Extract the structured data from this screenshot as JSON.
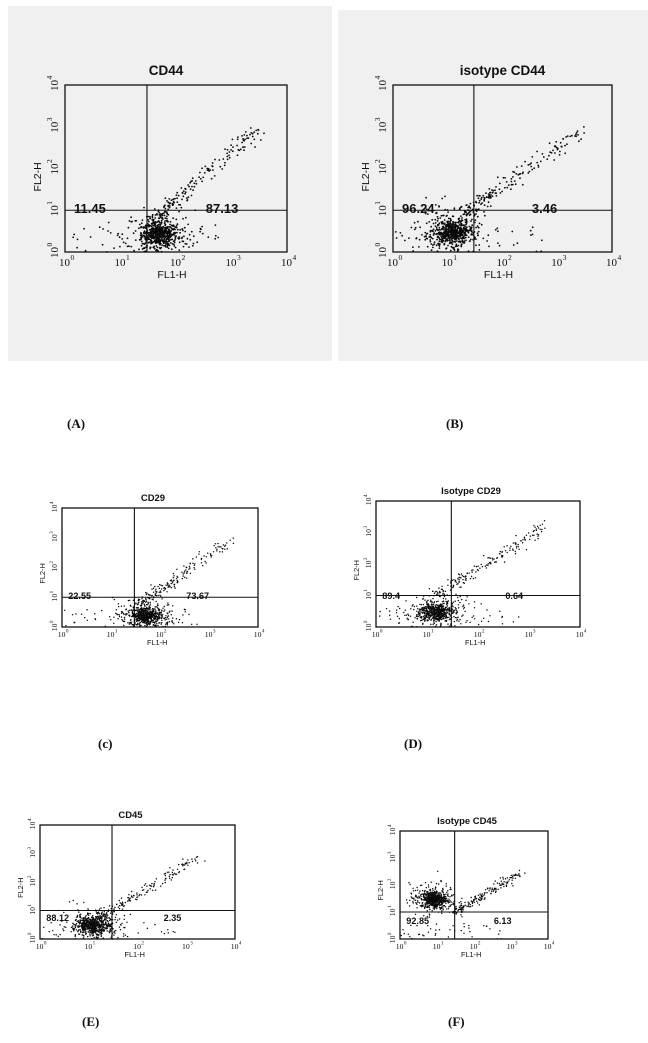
{
  "chart_data": [
    {
      "panel": "(A)",
      "type": "scatter",
      "title": "CD44",
      "xlabel": "FL1-H",
      "ylabel": "FL2-H",
      "xscale": "log",
      "yscale": "log",
      "xlim": [
        1,
        10000
      ],
      "ylim": [
        1,
        10000
      ],
      "xticks": [
        "10",
        "10",
        "10",
        "10",
        "10"
      ],
      "tick_exponents": [
        "0",
        "1",
        "2",
        "3",
        "4"
      ],
      "gate": {
        "x": 30,
        "y": 10
      },
      "quadrant_labels": [
        "11.45",
        "87.13"
      ],
      "cluster": {
        "x": 50,
        "y": 2.6
      },
      "tail": {
        "x": [
          40,
          3000
        ],
        "y": [
          6,
          900
        ]
      }
    },
    {
      "panel": "(B)",
      "type": "scatter",
      "title": "isotype CD44",
      "xlabel": "FL1-H",
      "ylabel": "FL2-H",
      "xscale": "log",
      "yscale": "log",
      "xlim": [
        1,
        10000
      ],
      "ylim": [
        1,
        10000
      ],
      "xticks": [
        "10",
        "10",
        "10",
        "10",
        "10"
      ],
      "tick_exponents": [
        "0",
        "1",
        "2",
        "3",
        "4"
      ],
      "gate": {
        "x": 30,
        "y": 10
      },
      "quadrant_labels": [
        "96.24",
        "3.46"
      ],
      "cluster": {
        "x": 12,
        "y": 3
      },
      "tail": {
        "x": [
          20,
          3000
        ],
        "y": [
          8,
          900
        ]
      }
    },
    {
      "panel": "(c)",
      "type": "scatter",
      "title": "CD29",
      "xlabel": "FL1-H",
      "ylabel": "FL2-H",
      "xscale": "log",
      "yscale": "log",
      "xlim": [
        1,
        10000
      ],
      "ylim": [
        1,
        10000
      ],
      "xticks": [
        "10",
        "10",
        "10",
        "10",
        "10"
      ],
      "tick_exponents": [
        "0",
        "1",
        "2",
        "3",
        "4"
      ],
      "gate": {
        "x": 30,
        "y": 10
      },
      "quadrant_labels": [
        "22.55",
        "73.67"
      ],
      "cluster": {
        "x": 50,
        "y": 2.4
      },
      "tail": {
        "x": [
          40,
          3000
        ],
        "y": [
          6,
          900
        ]
      }
    },
    {
      "panel": "(D)",
      "type": "scatter",
      "title": "Isotype CD29",
      "xlabel": "FL1-H",
      "ylabel": "FL2-H",
      "xscale": "log",
      "yscale": "log",
      "xlim": [
        1,
        10000
      ],
      "ylim": [
        1,
        10000
      ],
      "xticks": [
        "10",
        "10",
        "10",
        "10",
        "10"
      ],
      "tick_exponents": [
        "0",
        "1",
        "2",
        "3",
        "4"
      ],
      "gate": {
        "x": 30,
        "y": 10
      },
      "quadrant_labels": [
        "89.4",
        "0.64"
      ],
      "cluster": {
        "x": 15,
        "y": 3
      },
      "tail": {
        "x": [
          15,
          2000
        ],
        "y": [
          10,
          1500
        ]
      }
    },
    {
      "panel": "(E)",
      "type": "scatter",
      "title": "CD45",
      "xlabel": "FL1-H",
      "ylabel": "FL2-H",
      "xscale": "log",
      "yscale": "log",
      "xlim": [
        1,
        10000
      ],
      "ylim": [
        1,
        10000
      ],
      "xticks": [
        "10",
        "10",
        "10",
        "10",
        "10"
      ],
      "tick_exponents": [
        "0",
        "1",
        "2",
        "3",
        "4"
      ],
      "gate": {
        "x": 30,
        "y": 10
      },
      "quadrant_labels": [
        "88.12",
        "2.35"
      ],
      "cluster": {
        "x": 12,
        "y": 3
      },
      "tail": {
        "x": [
          15,
          2000
        ],
        "y": [
          5,
          800
        ]
      }
    },
    {
      "panel": "(F)",
      "type": "scatter",
      "title": "Isotype  CD45",
      "xlabel": "FL1-H",
      "ylabel": "FL2-H",
      "xscale": "log",
      "yscale": "log",
      "xlim": [
        1,
        10000
      ],
      "ylim": [
        1,
        10000
      ],
      "xticks": [
        "10",
        "10",
        "10",
        "10",
        "10"
      ],
      "tick_exponents": [
        "0",
        "1",
        "2",
        "3",
        "4"
      ],
      "gate": {
        "x": 30,
        "y": 10
      },
      "quadrant_labels": [
        "92.85",
        "6.13"
      ],
      "cluster": {
        "x": 8,
        "y": 30
      },
      "tail": {
        "x": [
          30,
          2000
        ],
        "y": [
          10,
          300
        ]
      }
    }
  ]
}
